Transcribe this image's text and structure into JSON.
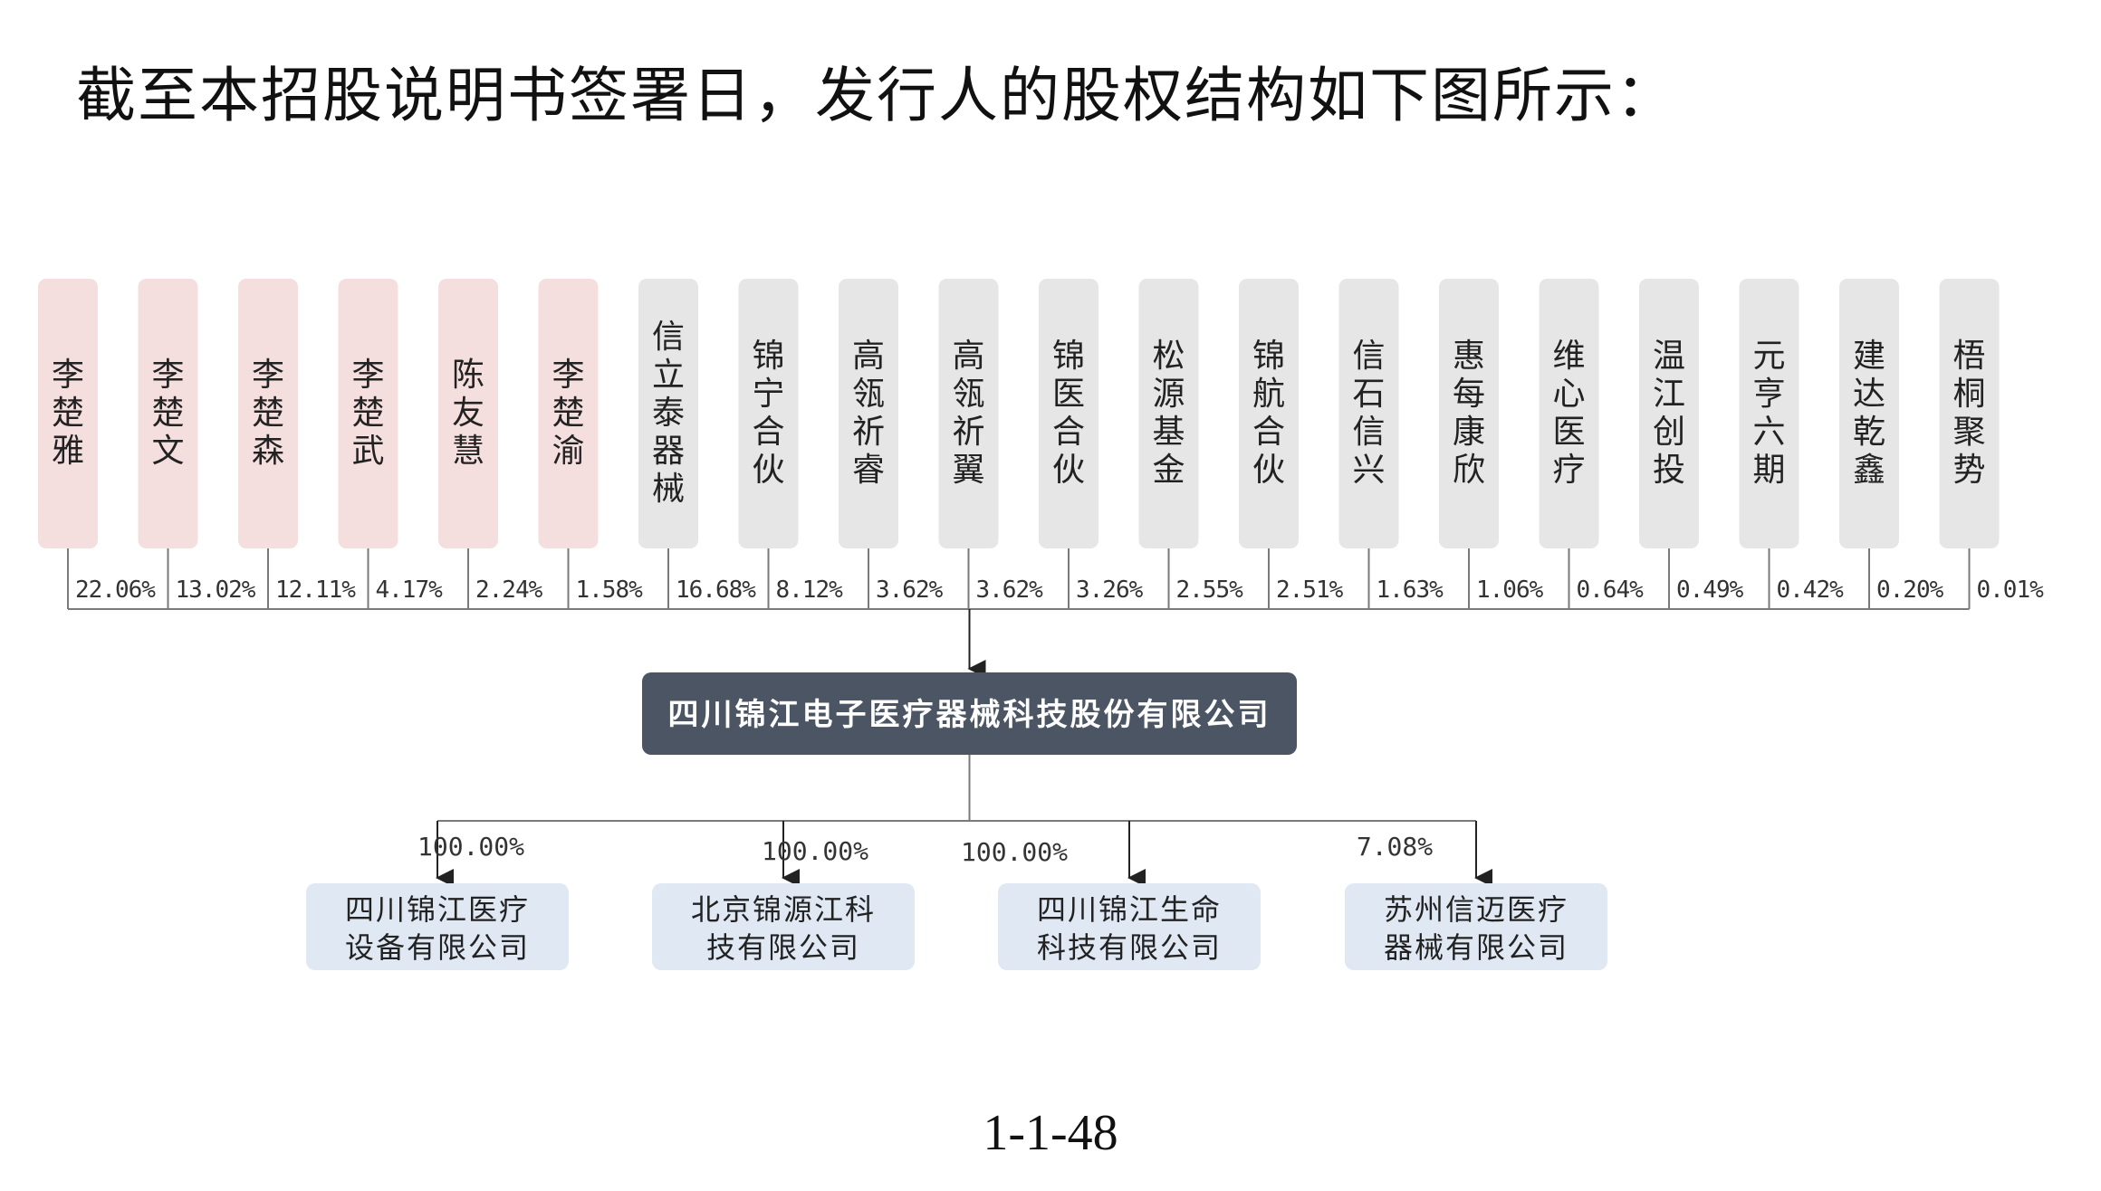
{
  "intro_text": "截至本招股说明书签署日，发行人的股权结构如下图所示：",
  "colors": {
    "individual_box": "#f5dfde",
    "entity_box": "#e6e6e6",
    "company_box": "#4b5563",
    "subsidiary_box": "#dfe8f3",
    "line": "#7a7a7a",
    "text": "#222222"
  },
  "shareholders": [
    {
      "name": "李楚雅",
      "type": "individual",
      "pct": "22.06%"
    },
    {
      "name": "李楚文",
      "type": "individual",
      "pct": "13.02%"
    },
    {
      "name": "李楚森",
      "type": "individual",
      "pct": "12.11%"
    },
    {
      "name": "李楚武",
      "type": "individual",
      "pct": "4.17%"
    },
    {
      "name": "陈友慧",
      "type": "individual",
      "pct": "2.24%"
    },
    {
      "name": "李楚渝",
      "type": "individual",
      "pct": "1.58%"
    },
    {
      "name": "信立泰器械",
      "type": "entity",
      "pct": "16.68%"
    },
    {
      "name": "锦宁合伙",
      "type": "entity",
      "pct": "8.12%"
    },
    {
      "name": "高瓴祈睿",
      "type": "entity",
      "pct": "3.62%"
    },
    {
      "name": "高瓴祈翼",
      "type": "entity",
      "pct": "3.62%"
    },
    {
      "name": "锦医合伙",
      "type": "entity",
      "pct": "3.26%"
    },
    {
      "name": "松源基金",
      "type": "entity",
      "pct": "2.55%"
    },
    {
      "name": "锦航合伙",
      "type": "entity",
      "pct": "2.51%"
    },
    {
      "name": "信石信兴",
      "type": "entity",
      "pct": "1.63%"
    },
    {
      "name": "惠每康欣",
      "type": "entity",
      "pct": "1.06%"
    },
    {
      "name": "维心医疗",
      "type": "entity",
      "pct": "0.64%"
    },
    {
      "name": "温江创投",
      "type": "entity",
      "pct": "0.49%"
    },
    {
      "name": "元亨六期",
      "type": "entity",
      "pct": "0.42%"
    },
    {
      "name": "建达乾鑫",
      "type": "entity",
      "pct": "0.20%"
    },
    {
      "name": "梧桐聚势",
      "type": "entity",
      "pct": "0.01%"
    }
  ],
  "issuer": {
    "name": "四川锦江电子医疗器械科技股份有限公司"
  },
  "subsidiaries": [
    {
      "lines": [
        "四川锦江医疗",
        "设备有限公司"
      ],
      "pct": "100.00%"
    },
    {
      "lines": [
        "北京锦源江科",
        "技有限公司"
      ],
      "pct": "100.00%"
    },
    {
      "lines": [
        "四川锦江生命",
        "科技有限公司"
      ],
      "pct": "100.00%"
    },
    {
      "lines": [
        "苏州信迈医疗",
        "器械有限公司"
      ],
      "pct": "7.08%"
    }
  ],
  "page_number": "1-1-48"
}
